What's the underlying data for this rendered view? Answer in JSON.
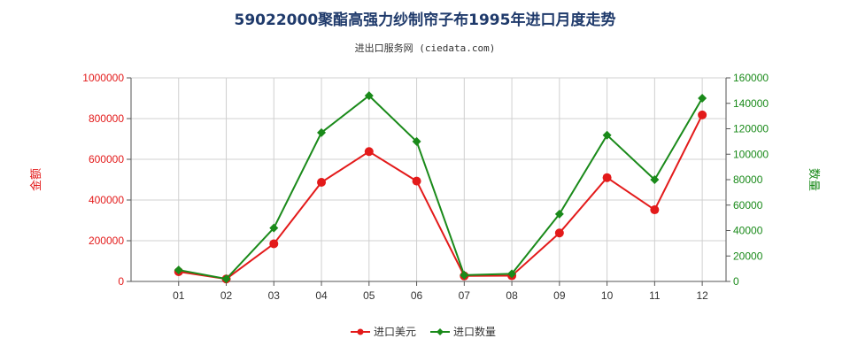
{
  "title": "59022000聚酯高强力纱制帘子布1995年进口月度走势",
  "subtitle": "进出口服务网 (ciedata.com)",
  "colors": {
    "amount": "#e31a1a",
    "quantity": "#1a8a1a",
    "grid": "#d0d0d0",
    "axis": "#555555"
  },
  "chart_data": {
    "type": "line",
    "categories": [
      "01",
      "02",
      "03",
      "04",
      "05",
      "06",
      "07",
      "08",
      "09",
      "10",
      "11",
      "12"
    ],
    "y_left": {
      "label": "金额",
      "ticks": [
        "0",
        "200000",
        "400000",
        "600000",
        "800000",
        "1000000"
      ],
      "ylim": [
        0,
        1000000
      ]
    },
    "y_right": {
      "label": "数量",
      "ticks": [
        "0",
        "20000",
        "40000",
        "60000",
        "80000",
        "100000",
        "120000",
        "140000",
        "160000"
      ],
      "ylim": [
        0,
        160000
      ]
    },
    "series": [
      {
        "name": "进口美元",
        "axis": "left",
        "marker": "circle",
        "values": [
          48000,
          12000,
          185000,
          487000,
          638000,
          493000,
          27000,
          28000,
          238000,
          510000,
          352000,
          818000
        ]
      },
      {
        "name": "进口数量",
        "axis": "right",
        "marker": "diamond",
        "values": [
          9000,
          2000,
          42000,
          117000,
          146000,
          110000,
          5000,
          6000,
          53000,
          115000,
          80000,
          144000
        ]
      }
    ],
    "grid": true,
    "legend_position": "bottom-center"
  }
}
